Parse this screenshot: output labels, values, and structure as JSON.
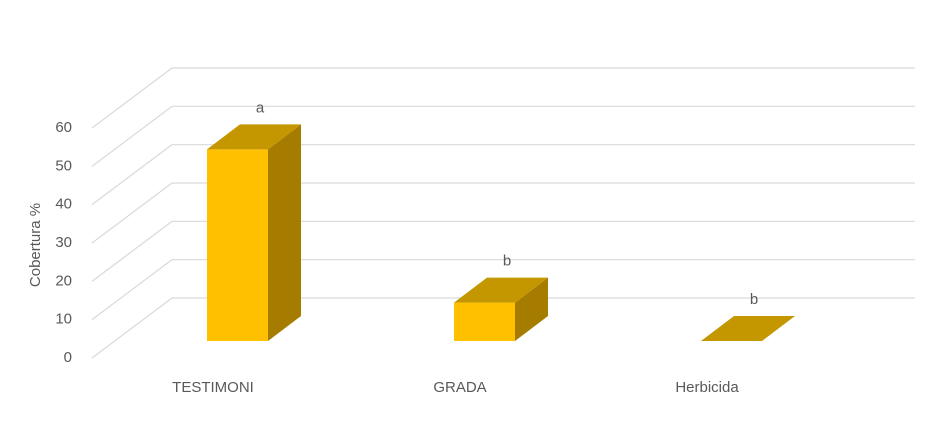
{
  "chart_data": {
    "type": "bar3d",
    "y_label": "Cobertura %",
    "categories": [
      "TESTIMONI",
      "GRADA",
      "Herbicida"
    ],
    "values": [
      50,
      10,
      0
    ],
    "annotations": [
      "a",
      "b",
      "b"
    ],
    "color": "#ffc000",
    "side_color": "#a67c00",
    "top_color": "#c49600",
    "ylim": [
      0,
      60
    ],
    "yticks": [
      0,
      10,
      20,
      30,
      40,
      50,
      60
    ],
    "grid": true
  }
}
